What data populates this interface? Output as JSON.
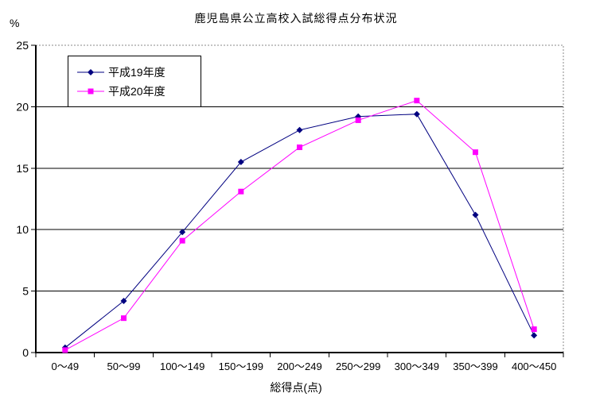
{
  "chart_data": {
    "type": "line",
    "title": "鹿児島県公立高校入試総得点分布状況",
    "y_unit": "%",
    "xlabel": "総得点(点)",
    "ylabel": "%",
    "categories": [
      "0〜49",
      "50〜99",
      "100〜149",
      "150〜199",
      "200〜249",
      "250〜299",
      "300〜349",
      "350〜399",
      "400〜450"
    ],
    "series": [
      {
        "name": "平成19年度",
        "color": "#000080",
        "marker": "diamond",
        "values": [
          0.4,
          4.2,
          9.8,
          15.5,
          18.1,
          19.2,
          19.4,
          11.2,
          1.4
        ]
      },
      {
        "name": "平成20年度",
        "color": "#FF00FF",
        "marker": "square",
        "values": [
          0.2,
          2.8,
          9.1,
          13.1,
          16.7,
          18.9,
          20.5,
          16.3,
          1.9
        ]
      }
    ],
    "ylim": [
      0,
      25
    ],
    "yticks": [
      0,
      5,
      10,
      15,
      20,
      25
    ],
    "grid": true,
    "legend_position": "top-left-inside",
    "colors": {
      "background": "#FFFFFF",
      "gridline": "#000000",
      "plot_border": "#888888"
    }
  }
}
